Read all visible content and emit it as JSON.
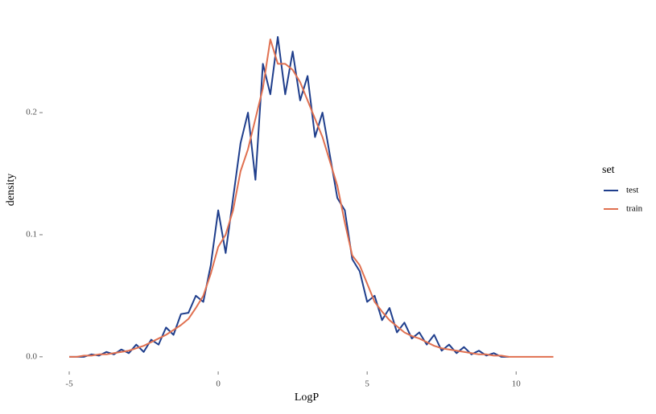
{
  "chart_data": {
    "type": "line",
    "x_label": "LogP",
    "y_label": "density",
    "legend_title": "set",
    "x": [
      -5,
      -4.75,
      -4.5,
      -4.25,
      -4,
      -3.75,
      -3.5,
      -3.25,
      -3,
      -2.75,
      -2.5,
      -2.25,
      -2,
      -1.75,
      -1.5,
      -1.25,
      -1,
      -0.75,
      -0.5,
      -0.25,
      0,
      0.25,
      0.5,
      0.75,
      1,
      1.25,
      1.5,
      1.75,
      2,
      2.25,
      2.5,
      2.75,
      3,
      3.25,
      3.5,
      3.75,
      4,
      4.25,
      4.5,
      4.75,
      5,
      5.25,
      5.5,
      5.75,
      6,
      6.25,
      6.5,
      6.75,
      7,
      7.25,
      7.5,
      7.75,
      8,
      8.25,
      8.5,
      8.75,
      9,
      9.25,
      9.5,
      9.75,
      10,
      10.25,
      10.5,
      10.75,
      11,
      11.25
    ],
    "series": [
      {
        "name": "test",
        "color": "#1f3e8c",
        "values": [
          0,
          0,
          0,
          0.002,
          0.001,
          0.004,
          0.002,
          0.006,
          0.003,
          0.01,
          0.004,
          0.014,
          0.01,
          0.024,
          0.018,
          0.035,
          0.036,
          0.05,
          0.045,
          0.075,
          0.12,
          0.085,
          0.13,
          0.175,
          0.2,
          0.145,
          0.24,
          0.215,
          0.262,
          0.215,
          0.25,
          0.21,
          0.23,
          0.18,
          0.2,
          0.165,
          0.13,
          0.12,
          0.08,
          0.07,
          0.045,
          0.05,
          0.03,
          0.04,
          0.02,
          0.028,
          0.015,
          0.02,
          0.01,
          0.018,
          0.005,
          0.01,
          0.003,
          0.008,
          0.002,
          0.005,
          0.001,
          0.003,
          0,
          0,
          null,
          null,
          null,
          null,
          null,
          null
        ]
      },
      {
        "name": "train",
        "color": "#e07050",
        "values": [
          0,
          0,
          0.001,
          0.001,
          0.002,
          0.002,
          0.003,
          0.004,
          0.005,
          0.007,
          0.009,
          0.012,
          0.015,
          0.018,
          0.022,
          0.026,
          0.031,
          0.04,
          0.05,
          0.068,
          0.09,
          0.1,
          0.12,
          0.152,
          0.17,
          0.195,
          0.22,
          0.26,
          0.24,
          0.24,
          0.235,
          0.225,
          0.21,
          0.195,
          0.18,
          0.16,
          0.14,
          0.11,
          0.083,
          0.075,
          0.06,
          0.045,
          0.037,
          0.03,
          0.025,
          0.02,
          0.017,
          0.015,
          0.012,
          0.009,
          0.007,
          0.006,
          0.005,
          0.004,
          0.003,
          0.002,
          0.002,
          0.001,
          0.001,
          0,
          0,
          0,
          0,
          0,
          0,
          0
        ]
      }
    ],
    "xlim": [
      -5.5,
      11.75
    ],
    "ylim": [
      -0.008,
      0.285
    ],
    "xticks": [
      -5,
      0,
      5,
      10
    ],
    "yticks": [
      {
        "value": 0,
        "label": "0.0"
      },
      0.1,
      0.2
    ],
    "grid": false,
    "legend_position": "right"
  }
}
